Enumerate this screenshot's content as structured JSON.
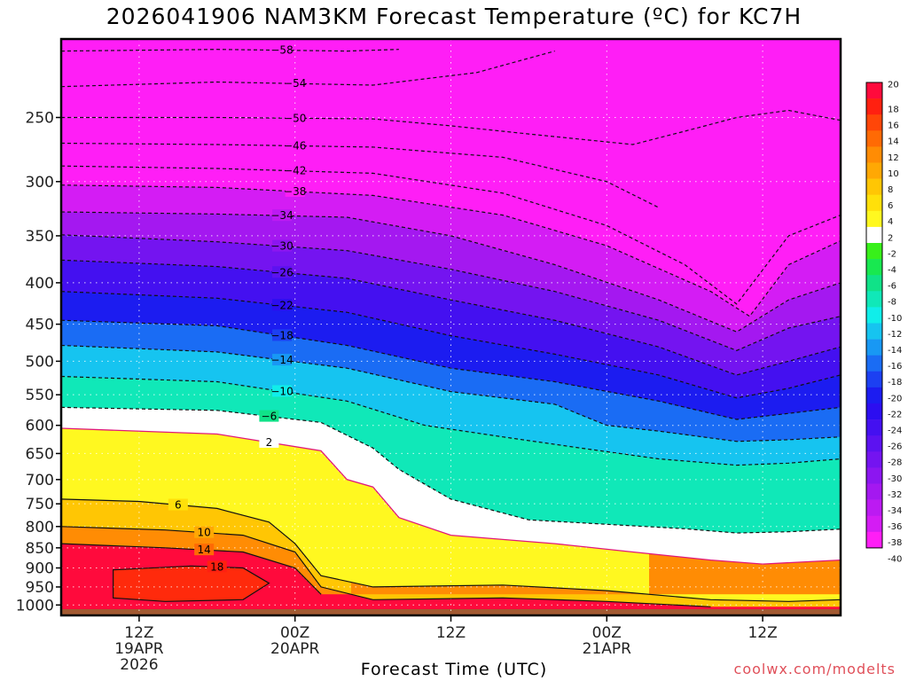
{
  "title": "2026041906 NAM3KM Forecast Temperature (ºC) for KC7H",
  "credit": "coolwx.com/modelts",
  "chart_data": {
    "type": "heatmap",
    "title": "2026041906 NAM3KM Forecast Temperature (ºC) for KC7H",
    "xlabel": "Forecast Time (UTC)",
    "ylabel": "",
    "x_range_hours": [
      6,
      66
    ],
    "y_range_hpa": [
      1030,
      200
    ],
    "x_ticks": [
      {
        "hour": 12,
        "label": "12Z",
        "date": "19APR",
        "year": "2026"
      },
      {
        "hour": 24,
        "label": "00Z",
        "date": "20APR",
        "year": ""
      },
      {
        "hour": 36,
        "label": "12Z",
        "date": "",
        "year": ""
      },
      {
        "hour": 48,
        "label": "00Z",
        "date": "21APR",
        "year": ""
      },
      {
        "hour": 60,
        "label": "12Z",
        "date": "",
        "year": ""
      }
    ],
    "y_ticks": [
      250,
      300,
      350,
      400,
      450,
      500,
      550,
      600,
      650,
      700,
      750,
      800,
      850,
      900,
      950,
      1000
    ],
    "grid": true,
    "colorbar": {
      "levels": [
        "20",
        "18",
        "16",
        "14",
        "12",
        "10",
        "8",
        "6",
        "4",
        "2",
        "-2",
        "-4",
        "-6",
        "-8",
        "-10",
        "-12",
        "-14",
        "-16",
        "-18",
        "-20",
        "-22",
        "-24",
        "-26",
        "-28",
        "-30",
        "-32",
        "-34",
        "-36",
        "-38",
        "-40"
      ],
      "colors": [
        "#ff0a3c",
        "#ff2010",
        "#ff4608",
        "#ff6a04",
        "#ff8c04",
        "#ffa804",
        "#ffc604",
        "#ffe00a",
        "#fff820",
        "#ffffff",
        "#38f01a",
        "#18e850",
        "#10e288",
        "#10e8b8",
        "#10eeea",
        "#16c4f0",
        "#1898f4",
        "#1a6cf4",
        "#1c40f2",
        "#1c1cf0",
        "#2c0ef0",
        "#4410f0",
        "#5c12f0",
        "#7414f0",
        "#8c16f0",
        "#a418f0",
        "#bc1af2",
        "#d41cf4",
        "#ff1ef6"
      ],
      "position": "right"
    },
    "isotherms": [
      {
        "t": -58,
        "p": [
          {
            "h": 6,
            "p": 207
          },
          {
            "h": 18,
            "p": 206
          },
          {
            "h": 28,
            "p": 207
          },
          {
            "h": 32,
            "p": 206
          }
        ]
      },
      {
        "t": -54,
        "p": [
          {
            "h": 6,
            "p": 229
          },
          {
            "h": 18,
            "p": 226
          },
          {
            "h": 30,
            "p": 228
          },
          {
            "h": 38,
            "p": 220
          },
          {
            "h": 44,
            "p": 207
          }
        ]
      },
      {
        "t": -50,
        "p": [
          {
            "h": 6,
            "p": 250
          },
          {
            "h": 18,
            "p": 250
          },
          {
            "h": 30,
            "p": 251
          },
          {
            "h": 36,
            "p": 256
          },
          {
            "h": 42,
            "p": 262
          },
          {
            "h": 50,
            "p": 270
          },
          {
            "h": 54,
            "p": 260
          },
          {
            "h": 58,
            "p": 250
          },
          {
            "h": 62,
            "p": 245
          },
          {
            "h": 66,
            "p": 252
          }
        ]
      },
      {
        "t": -46,
        "p": [
          {
            "h": 6,
            "p": 269
          },
          {
            "h": 18,
            "p": 270
          },
          {
            "h": 30,
            "p": 272
          },
          {
            "h": 40,
            "p": 280
          },
          {
            "h": 48,
            "p": 300
          },
          {
            "h": 52,
            "p": 323
          }
        ]
      },
      {
        "t": -42,
        "p": [
          {
            "h": 6,
            "p": 287
          },
          {
            "h": 18,
            "p": 289
          },
          {
            "h": 30,
            "p": 293
          },
          {
            "h": 40,
            "p": 310
          },
          {
            "h": 48,
            "p": 340
          },
          {
            "h": 54,
            "p": 380
          },
          {
            "h": 58,
            "p": 425
          },
          {
            "h": 62,
            "p": 350
          },
          {
            "h": 66,
            "p": 330
          }
        ]
      },
      {
        "t": -38,
        "p": [
          {
            "h": 6,
            "p": 303
          },
          {
            "h": 18,
            "p": 305
          },
          {
            "h": 30,
            "p": 312
          },
          {
            "h": 40,
            "p": 330
          },
          {
            "h": 48,
            "p": 360
          },
          {
            "h": 56,
            "p": 410
          },
          {
            "h": 59,
            "p": 440
          },
          {
            "h": 62,
            "p": 380
          },
          {
            "h": 66,
            "p": 355
          }
        ]
      },
      {
        "t": -34,
        "p": [
          {
            "h": 6,
            "p": 327
          },
          {
            "h": 18,
            "p": 329
          },
          {
            "h": 28,
            "p": 332
          },
          {
            "h": 36,
            "p": 350
          },
          {
            "h": 44,
            "p": 380
          },
          {
            "h": 52,
            "p": 420
          },
          {
            "h": 58,
            "p": 460
          },
          {
            "h": 62,
            "p": 420
          },
          {
            "h": 66,
            "p": 400
          }
        ]
      },
      {
        "t": -30,
        "p": [
          {
            "h": 6,
            "p": 349
          },
          {
            "h": 18,
            "p": 356
          },
          {
            "h": 28,
            "p": 365
          },
          {
            "h": 36,
            "p": 385
          },
          {
            "h": 44,
            "p": 410
          },
          {
            "h": 52,
            "p": 445
          },
          {
            "h": 58,
            "p": 485
          },
          {
            "h": 62,
            "p": 455
          },
          {
            "h": 66,
            "p": 440
          }
        ]
      },
      {
        "t": -26,
        "p": [
          {
            "h": 6,
            "p": 375
          },
          {
            "h": 18,
            "p": 382
          },
          {
            "h": 28,
            "p": 395
          },
          {
            "h": 36,
            "p": 420
          },
          {
            "h": 44,
            "p": 445
          },
          {
            "h": 52,
            "p": 480
          },
          {
            "h": 58,
            "p": 520
          },
          {
            "h": 62,
            "p": 500
          },
          {
            "h": 66,
            "p": 480
          }
        ]
      },
      {
        "t": -22,
        "p": [
          {
            "h": 6,
            "p": 410
          },
          {
            "h": 18,
            "p": 418
          },
          {
            "h": 28,
            "p": 435
          },
          {
            "h": 36,
            "p": 465
          },
          {
            "h": 44,
            "p": 490
          },
          {
            "h": 52,
            "p": 520
          },
          {
            "h": 58,
            "p": 555
          },
          {
            "h": 62,
            "p": 540
          },
          {
            "h": 66,
            "p": 520
          }
        ]
      },
      {
        "t": -18,
        "p": [
          {
            "h": 6,
            "p": 445
          },
          {
            "h": 18,
            "p": 452
          },
          {
            "h": 28,
            "p": 478
          },
          {
            "h": 36,
            "p": 510
          },
          {
            "h": 44,
            "p": 530
          },
          {
            "h": 52,
            "p": 560
          },
          {
            "h": 58,
            "p": 590
          },
          {
            "h": 62,
            "p": 580
          },
          {
            "h": 66,
            "p": 570
          }
        ]
      },
      {
        "t": -14,
        "p": [
          {
            "h": 6,
            "p": 478
          },
          {
            "h": 18,
            "p": 487
          },
          {
            "h": 28,
            "p": 510
          },
          {
            "h": 36,
            "p": 545
          },
          {
            "h": 44,
            "p": 565
          },
          {
            "h": 48,
            "p": 600
          },
          {
            "h": 52,
            "p": 610
          },
          {
            "h": 58,
            "p": 628
          },
          {
            "h": 62,
            "p": 625
          },
          {
            "h": 66,
            "p": 620
          }
        ]
      },
      {
        "t": -10,
        "p": [
          {
            "h": 6,
            "p": 522
          },
          {
            "h": 18,
            "p": 530
          },
          {
            "h": 28,
            "p": 560
          },
          {
            "h": 34,
            "p": 600
          },
          {
            "h": 40,
            "p": 620
          },
          {
            "h": 46,
            "p": 640
          },
          {
            "h": 52,
            "p": 660
          },
          {
            "h": 58,
            "p": 672
          },
          {
            "h": 62,
            "p": 668
          },
          {
            "h": 66,
            "p": 660
          }
        ]
      },
      {
        "t": -6,
        "p": [
          {
            "h": 6,
            "p": 570
          },
          {
            "h": 18,
            "p": 575
          },
          {
            "h": 26,
            "p": 595
          },
          {
            "h": 30,
            "p": 640
          },
          {
            "h": 32,
            "p": 680
          },
          {
            "h": 36,
            "p": 740
          },
          {
            "h": 42,
            "p": 785
          },
          {
            "h": 48,
            "p": 795
          },
          {
            "h": 54,
            "p": 805
          },
          {
            "h": 58,
            "p": 815
          },
          {
            "h": 62,
            "p": 812
          },
          {
            "h": 66,
            "p": 806
          }
        ]
      },
      {
        "t": 2,
        "p": [
          {
            "h": 6,
            "p": 605
          },
          {
            "h": 18,
            "p": 615
          },
          {
            "h": 26,
            "p": 645
          },
          {
            "h": 28,
            "p": 700
          },
          {
            "h": 30,
            "p": 715
          },
          {
            "h": 32,
            "p": 780
          },
          {
            "h": 36,
            "p": 820
          },
          {
            "h": 44,
            "p": 840
          },
          {
            "h": 50,
            "p": 860
          },
          {
            "h": 56,
            "p": 880
          },
          {
            "h": 60,
            "p": 890
          },
          {
            "h": 66,
            "p": 880
          }
        ]
      },
      {
        "t": 6,
        "p": [
          {
            "h": 6,
            "p": 740
          },
          {
            "h": 12,
            "p": 745
          },
          {
            "h": 18,
            "p": 760
          },
          {
            "h": 22,
            "p": 790
          },
          {
            "h": 24,
            "p": 840
          },
          {
            "h": 26,
            "p": 920
          },
          {
            "h": 30,
            "p": 950
          },
          {
            "h": 40,
            "p": 945
          },
          {
            "h": 48,
            "p": 960
          },
          {
            "h": 56,
            "p": 985
          },
          {
            "h": 62,
            "p": 990
          },
          {
            "h": 66,
            "p": 985
          }
        ]
      },
      {
        "t": 10,
        "p": [
          {
            "h": 6,
            "p": 800
          },
          {
            "h": 14,
            "p": 808
          },
          {
            "h": 20,
            "p": 820
          },
          {
            "h": 24,
            "p": 860
          },
          {
            "h": 26,
            "p": 950
          },
          {
            "h": 30,
            "p": 985
          },
          {
            "h": 40,
            "p": 980
          },
          {
            "h": 48,
            "p": 990
          },
          {
            "h": 56,
            "p": 1005
          }
        ]
      },
      {
        "t": 14,
        "p": [
          {
            "h": 6,
            "p": 840
          },
          {
            "h": 14,
            "p": 850
          },
          {
            "h": 20,
            "p": 860
          },
          {
            "h": 24,
            "p": 900
          },
          {
            "h": 26,
            "p": 970
          }
        ]
      },
      {
        "t": 18,
        "p": [
          {
            "h": 10,
            "p": 905
          },
          {
            "h": 16,
            "p": 895
          },
          {
            "h": 20,
            "p": 900
          },
          {
            "h": 22,
            "p": 940
          },
          {
            "h": 20,
            "p": 985
          },
          {
            "h": 14,
            "p": 990
          },
          {
            "h": 10,
            "p": 980
          }
        ]
      }
    ]
  }
}
